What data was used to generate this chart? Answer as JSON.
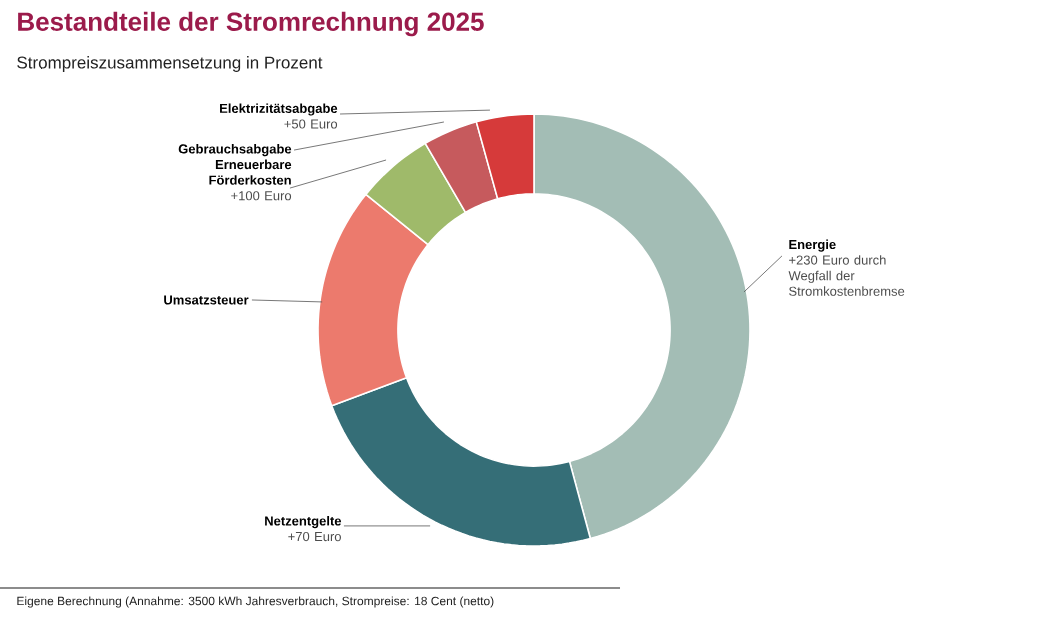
{
  "chart_data": {
    "type": "donut",
    "title": "Bestandteile der Stromrechnung 2025",
    "subtitle": "Strompreiszusammensetzung in Prozent",
    "categories": [
      "Energie",
      "Netzentgelte",
      "Umsatzsteuer",
      "Erneuerbare Förderkosten",
      "Gebrauchsabgabe",
      "Elektrizitätsabgabe"
    ],
    "values": [
      45.8,
      23.5,
      16.5,
      5.8,
      4.1,
      4.3
    ],
    "colors": [
      "#a3bdb5",
      "#356e77",
      "#ec7a6d",
      "#9fba6a",
      "#c65a5d",
      "#d63a3a"
    ],
    "annotations": [
      "+230 Euro durch Wegfall der Stromkostenbremse",
      "+70 Euro",
      "+100 Euro",
      "+50 Euro",
      "Eigene Berechnung (Annahme: 3500 kWh Jahresverbrauch, Strompreise: 18 Cent (netto)"
    ]
  }
}
